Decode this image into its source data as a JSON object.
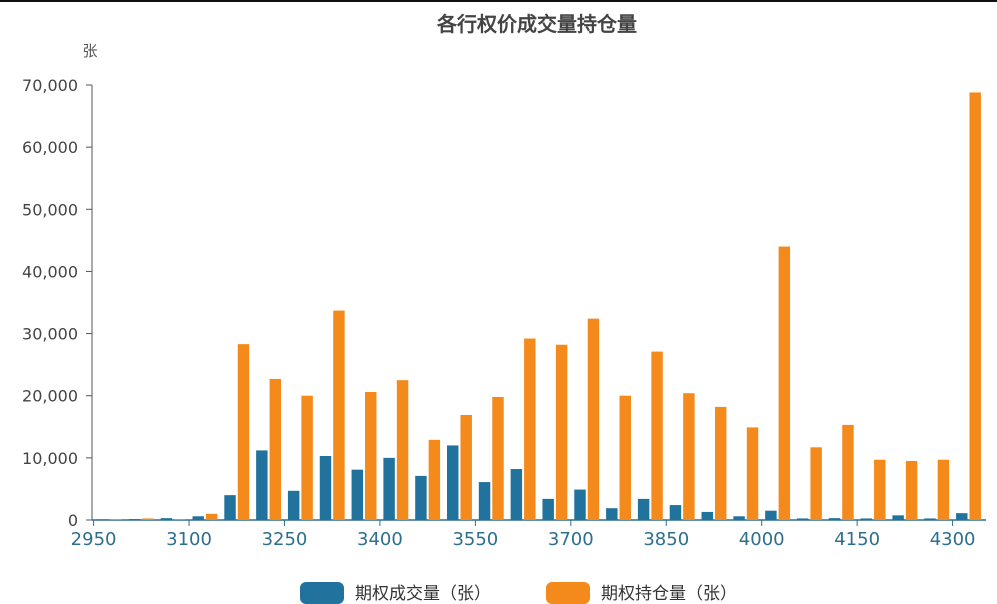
{
  "chart_data": {
    "type": "bar",
    "title": "各行权价成交量持仓量",
    "ylabel": "张",
    "ylim": [
      0,
      70000
    ],
    "yticks": [
      0,
      10000,
      20000,
      30000,
      40000,
      50000,
      60000,
      70000
    ],
    "yticklabels": [
      "0",
      "10,000",
      "20,000",
      "30,000",
      "40,000",
      "50,000",
      "60,000",
      "70,000"
    ],
    "xticklabels": [
      "2950",
      "3100",
      "3250",
      "3400",
      "3550",
      "3700",
      "3850",
      "4000",
      "4150",
      "4300"
    ],
    "categories": [
      "2950",
      "3000",
      "3050",
      "3100",
      "3150",
      "3200",
      "3250",
      "3300",
      "3350",
      "3400",
      "3450",
      "3500",
      "3550",
      "3600",
      "3650",
      "3700",
      "3750",
      "3800",
      "3850",
      "3900",
      "3950",
      "4000",
      "4050",
      "4100",
      "4150",
      "4200",
      "4250",
      "4300"
    ],
    "series": [
      {
        "name": "期权成交量（张）",
        "color": "#21739e",
        "values": [
          100,
          150,
          300,
          600,
          4000,
          11200,
          4700,
          10300,
          8100,
          10000,
          7100,
          12000,
          6100,
          8200,
          3400,
          4900,
          1900,
          3400,
          2400,
          1300,
          600,
          1500,
          250,
          300,
          250,
          750,
          250,
          1100
        ]
      },
      {
        "name": "期权持仓量（张）",
        "color": "#f48a1c",
        "values": [
          100,
          250,
          150,
          1000,
          28300,
          22700,
          20000,
          33700,
          20600,
          22500,
          12900,
          16900,
          19800,
          29200,
          28200,
          32400,
          20000,
          27100,
          20400,
          18200,
          14900,
          44000,
          11700,
          15300,
          9700,
          9500,
          9700,
          68800
        ]
      }
    ],
    "legend_position": "bottom-center",
    "grid": false
  }
}
